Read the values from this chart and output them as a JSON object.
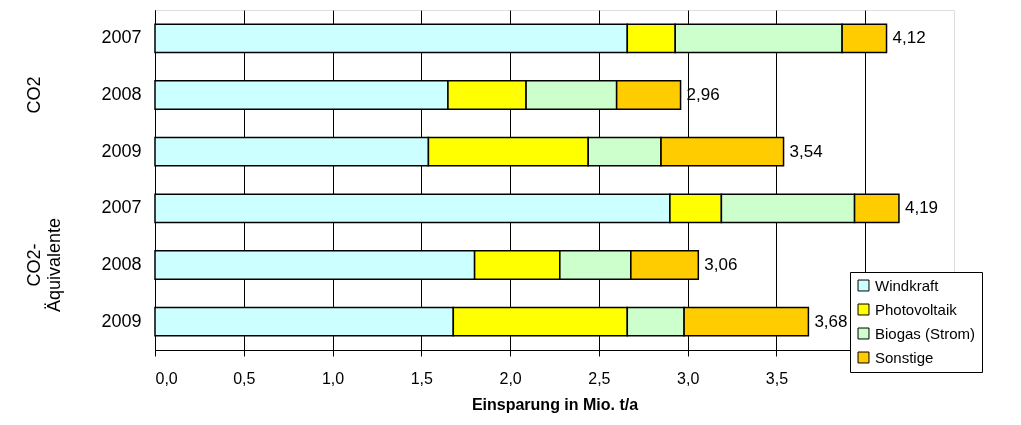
{
  "chart_data": {
    "type": "bar",
    "orientation": "horizontal",
    "stacked": true,
    "xlabel": "Einsparung in Mio. t/a",
    "categories": [
      "2007",
      "2008",
      "2009",
      "2007",
      "2008",
      "2009"
    ],
    "annotations": [
      "CO2",
      "CO2-Äquivalente"
    ],
    "series": [
      {
        "name": "Windkraft",
        "color": "#ccffff",
        "values": [
          2.66,
          1.65,
          1.54,
          2.9,
          1.8,
          1.68
        ]
      },
      {
        "name": "Photovoltaik",
        "color": "#ffff00",
        "values": [
          0.27,
          0.44,
          0.9,
          0.29,
          0.48,
          0.98
        ]
      },
      {
        "name": "Biogas (Strom)",
        "color": "#ccffcc",
        "values": [
          0.94,
          0.51,
          0.41,
          0.75,
          0.4,
          0.32
        ]
      },
      {
        "name": "Sonstige",
        "color": "#ffcc00",
        "values": [
          0.25,
          0.36,
          0.69,
          0.25,
          0.38,
          0.7
        ]
      }
    ],
    "totals": [
      "4,12",
      "2,96",
      "3,54",
      "4,19",
      "3,06",
      "3,68"
    ],
    "xlim": [
      0,
      4.5
    ],
    "xticks": [
      {
        "value": 0,
        "label": "0,0"
      },
      {
        "value": 0.5,
        "label": "0,5"
      },
      {
        "value": 1,
        "label": "1,0"
      },
      {
        "value": 1.5,
        "label": "1,5"
      },
      {
        "value": 2,
        "label": "2,0"
      },
      {
        "value": 2.5,
        "label": "2,5"
      },
      {
        "value": 3,
        "label": "3,0"
      },
      {
        "value": 3.5,
        "label": "3,5"
      },
      {
        "value": 4,
        "label": null
      }
    ],
    "grid": "x",
    "legend": "bottom right"
  }
}
